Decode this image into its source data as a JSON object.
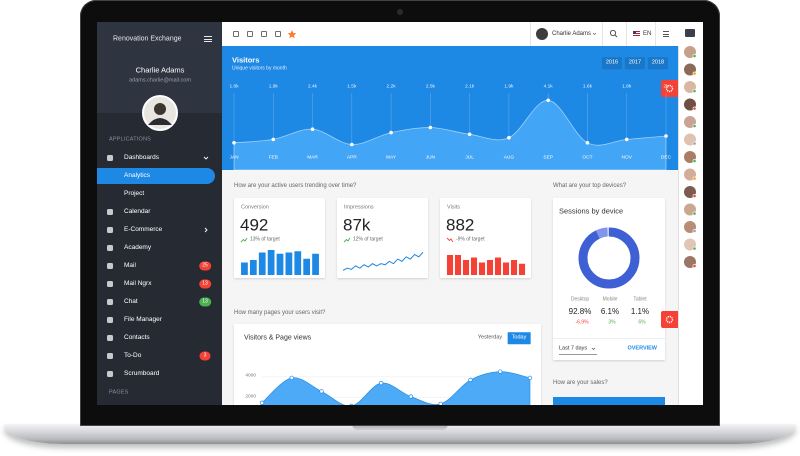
{
  "sidebar": {
    "title": "Renovation Exchange",
    "user_name": "Charlie Adams",
    "email": "adams.charlie@mail.com",
    "sections": [
      {
        "title": "APPLICATIONS",
        "items": [
          {
            "label": "Dashboards",
            "expand": "down"
          },
          {
            "label": "Analytics",
            "child": true,
            "active": true
          },
          {
            "label": "Project",
            "child": true
          },
          {
            "label": "Calendar"
          },
          {
            "label": "E-Commerce",
            "expand": "right"
          },
          {
            "label": "Academy"
          },
          {
            "label": "Mail",
            "badge": "25",
            "badge_color": "#f44336"
          },
          {
            "label": "Mail Ngrx",
            "badge": "13",
            "badge_color": "#f44336"
          },
          {
            "label": "Chat",
            "badge": "13",
            "badge_color": "#4caf50"
          },
          {
            "label": "File Manager"
          },
          {
            "label": "Contacts"
          },
          {
            "label": "To-Do",
            "badge": "3",
            "badge_color": "#f44336"
          },
          {
            "label": "Scrumboard"
          }
        ]
      },
      {
        "title": "PAGES"
      }
    ]
  },
  "toolbar": {
    "user_name": "Charlie Adams",
    "language": "EN"
  },
  "visitors_chart": {
    "type": "area",
    "title": "Visitors",
    "subtitle": "Unique visitors by month",
    "years": [
      "2016",
      "2017",
      "2018"
    ],
    "categories": [
      "JAN",
      "FEB",
      "MAR",
      "APR",
      "MAY",
      "JUN",
      "JUL",
      "AUG",
      "SEP",
      "OCT",
      "NOV",
      "DEC"
    ],
    "values": [
      1600,
      1800,
      2400,
      1500,
      2200,
      2500,
      2100,
      1900,
      4100,
      1600,
      1800,
      2000
    ],
    "value_labels": [
      "1.6k",
      "1.8k",
      "2.4k",
      "1.5k",
      "2.2k",
      "2.5k",
      "2.1k",
      "1.9k",
      "4.1k",
      "1.6k",
      "1.8k",
      "2k"
    ],
    "ylim": [
      0,
      5000
    ],
    "color": "#42a5f5"
  },
  "users_trend": {
    "question": "How are your active users trending over time?",
    "cards": [
      {
        "title": "Conversion",
        "value": "492",
        "change": "13% of target",
        "trend": "up",
        "chart": {
          "type": "bar",
          "color": "#1e88e5",
          "values": [
            5,
            6,
            9,
            10,
            8.5,
            9,
            9.5,
            6.5,
            8.5
          ],
          "ylim": [
            0,
            10
          ]
        }
      },
      {
        "title": "Impressions",
        "value": "87k",
        "change": "12% of target",
        "trend": "up",
        "chart": {
          "type": "line",
          "color": "#1e88e5",
          "values": [
            2,
            3,
            2.5,
            4,
            3,
            4.5,
            3.5,
            5,
            4,
            5,
            4.5,
            6,
            5,
            7,
            6,
            8,
            7,
            9,
            8,
            10
          ],
          "ylim": [
            0,
            11
          ]
        }
      },
      {
        "title": "Visits",
        "value": "882",
        "change": "-9% of target",
        "trend": "down",
        "chart": {
          "type": "bar",
          "color": "#f44336",
          "values": [
            8,
            8,
            6,
            7,
            5,
            6,
            7,
            5,
            6,
            4.5
          ],
          "ylim": [
            0,
            10
          ]
        }
      }
    ]
  },
  "devices": {
    "question": "What are your top devices?",
    "title": "Sessions by device",
    "type": "donut",
    "items": [
      {
        "name": "Desktop",
        "value": 92.8,
        "label": "92.8%",
        "change": "-6.9%",
        "trend": "down",
        "color": "#3f5fd4"
      },
      {
        "name": "Mobile",
        "value": 6.1,
        "label": "6.1%",
        "change": "3%",
        "trend": "up",
        "color": "#8195ea"
      },
      {
        "name": "Tablet",
        "value": 1.1,
        "label": "1.1%",
        "change": "6%",
        "trend": "up",
        "color": "#c3cdf5"
      }
    ],
    "period": "Last 7 days",
    "link": "OVERVIEW"
  },
  "sales": {
    "question": "How are your sales?"
  },
  "pages": {
    "question": "How many pages your users visit?",
    "title": "Visitors & Page views",
    "buttons": [
      "Yesterday",
      "Today"
    ],
    "active_button": 1,
    "chart": {
      "type": "area",
      "color": "#42a5f5",
      "values": [
        1500,
        3900,
        2600,
        1200,
        3400,
        2100,
        1400,
        3700,
        4500,
        3900
      ],
      "ylim": [
        1000,
        6000
      ],
      "yticks": [
        2000,
        4000
      ],
      "grid": true
    }
  }
}
